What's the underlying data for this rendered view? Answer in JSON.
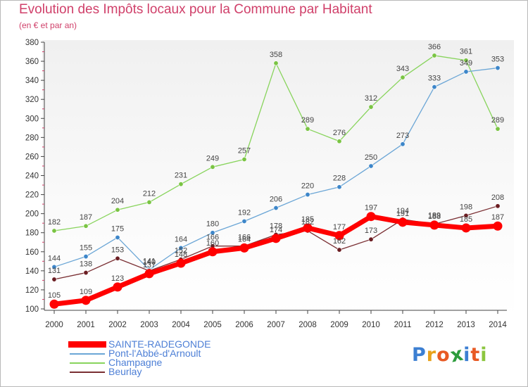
{
  "header": {
    "title": "Evolution des Impôts locaux pour la Commune par Habitant",
    "subtitle": "(en € et par an)"
  },
  "logo": {
    "text": "Proxiti",
    "letters": [
      "P",
      "r",
      "o",
      "x",
      "i",
      "t",
      "i"
    ],
    "colors": [
      "#3c7fd2",
      "#e8a21c",
      "#e85a24",
      "#2c9c3c",
      "#3c7fd2",
      "#e85a24",
      "#8cc63f"
    ]
  },
  "colors": {
    "title": "#d0406a",
    "legend_text": "#4d7fd6",
    "axis": "#444444",
    "tick_red": "#d0406a"
  },
  "chart_data": {
    "type": "line",
    "title": "Evolution des Impôts locaux pour la Commune par Habitant",
    "subtitle": "(en € et par an)",
    "x": [
      "2000",
      "2001",
      "2002",
      "2003",
      "2004",
      "2005",
      "2006",
      "2007",
      "2008",
      "2009",
      "2010",
      "2011",
      "2012",
      "2013",
      "2014"
    ],
    "ylim": [
      100,
      380
    ],
    "yticks": [
      100,
      120,
      140,
      160,
      180,
      200,
      220,
      240,
      260,
      280,
      300,
      320,
      340,
      360,
      380
    ],
    "grid": false,
    "legend_position": "bottom-left",
    "series": [
      {
        "name": "Champagne",
        "color": "#88d45c",
        "marker": "#7ac443",
        "width": 1.3,
        "values": [
          182,
          187,
          204,
          212,
          231,
          249,
          257,
          358,
          289,
          276,
          312,
          343,
          366,
          361,
          289
        ],
        "labels": [
          "182",
          "187",
          "204",
          "212",
          "231",
          "249",
          "257",
          "358",
          "289",
          "276",
          "312",
          "343",
          "366",
          "361",
          "289"
        ]
      },
      {
        "name": "Pont-l'Abbé-d'Arnoult",
        "color": "#6ba6d6",
        "marker": "#3d86c9",
        "width": 1.3,
        "values": [
          144,
          155,
          175,
          141,
          164,
          180,
          192,
          206,
          220,
          228,
          250,
          273,
          333,
          349,
          353
        ],
        "labels": [
          "144",
          "155",
          "175",
          "141",
          "164",
          "180",
          "192",
          "206",
          "220",
          "228",
          "250",
          "273",
          "333",
          "349",
          "353"
        ]
      },
      {
        "name": "Beurlay",
        "color": "#7a2f33",
        "marker": "#6b1d22",
        "width": 1.3,
        "values": [
          131,
          138,
          153,
          140,
          152,
          166,
          166,
          178,
          182,
          162,
          173,
          194,
          189,
          198,
          208
        ],
        "labels": [
          "131",
          "138",
          "153",
          "140",
          "152",
          "166",
          "166",
          "178",
          "182",
          "162",
          "173",
          "194",
          "189",
          "198",
          "208"
        ]
      },
      {
        "name": "SAINTE-RADEGONDE",
        "color": "#ff0000",
        "marker": "#ff0000",
        "width": 7,
        "values": [
          105,
          109,
          123,
          137,
          148,
          160,
          164,
          174,
          185,
          177,
          197,
          191,
          188,
          185,
          187
        ],
        "labels": [
          "105",
          "109",
          "123",
          "137",
          "148",
          "160",
          "164",
          "174",
          "185",
          "177",
          "197",
          "191",
          "188",
          "185",
          "187"
        ]
      }
    ],
    "legend": [
      {
        "name": "SAINTE-RADEGONDE",
        "color": "#ff0000",
        "thick": true
      },
      {
        "name": "Pont-l'Abbé-d'Arnoult",
        "color": "#6ba6d6",
        "thick": false
      },
      {
        "name": "Champagne",
        "color": "#88d45c",
        "thick": false
      },
      {
        "name": "Beurlay",
        "color": "#7a2f33",
        "thick": false
      }
    ]
  }
}
